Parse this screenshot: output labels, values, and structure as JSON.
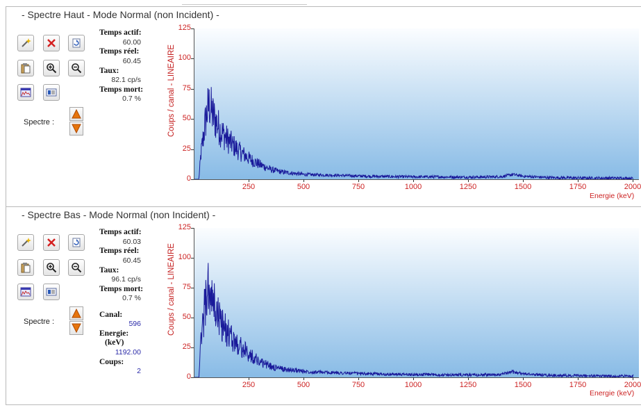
{
  "panels": [
    {
      "title": "- Spectre Haut - Mode Normal (non Incident) -",
      "spectre_label": "Spectre :",
      "stats": {
        "temps_actif_label": "Temps actif:",
        "temps_actif": "60.00",
        "temps_reel_label": "Temps réel:",
        "temps_reel": "60.45",
        "taux_label": "Taux:",
        "taux": "82.1 cp/s",
        "temps_mort_label": "Temps mort:",
        "temps_mort": "0.7 %"
      },
      "cursor": null,
      "chart_data": {
        "type": "line",
        "ylabel": "Coups / canal - LINEAIRE",
        "xlabel": "Energie (keV)",
        "xlim": [
          0,
          2000
        ],
        "ylim": [
          0,
          125
        ],
        "x_ticks": [
          "250",
          "500",
          "750",
          "1000",
          "1250",
          "1500",
          "1750",
          "2000"
        ],
        "y_ticks": [
          "0",
          "25",
          "50",
          "75",
          "100",
          "125"
        ],
        "series": [
          {
            "color": "#1a1a9a",
            "x": [
              20,
              30,
              40,
              50,
              60,
              70,
              80,
              100,
              120,
              150,
              200,
              250,
              300,
              350,
              400,
              450,
              500,
              600,
              700,
              800,
              900,
              1000,
              1100,
              1200,
              1300,
              1400,
              1450,
              1500,
              1600,
              1700,
              1800,
              1900,
              2000
            ],
            "y": [
              0,
              22,
              34,
              48,
              58,
              62,
              55,
              47,
              40,
              33,
              24,
              17,
              12,
              8,
              6,
              5,
              4,
              3.5,
              3,
              2.5,
              2.2,
              2,
              2,
              1.8,
              1.8,
              2.2,
              4,
              2.5,
              1.5,
              1.2,
              1,
              1,
              0.8
            ]
          }
        ]
      }
    },
    {
      "title": "- Spectre Bas - Mode Normal (non Incident) -",
      "spectre_label": "Spectre :",
      "stats": {
        "temps_actif_label": "Temps actif:",
        "temps_actif": "60.03",
        "temps_reel_label": "Temps réel:",
        "temps_reel": "60.45",
        "taux_label": "Taux:",
        "taux": "96.1 cp/s",
        "temps_mort_label": "Temps mort:",
        "temps_mort": "0.7 %"
      },
      "cursor": {
        "canal_label": "Canal:",
        "canal": "596",
        "energie_label": "Energie:",
        "energie_unit_label": "(keV)",
        "energie": "1192.00",
        "coups_label": "Coups:",
        "coups": "2"
      },
      "chart_data": {
        "type": "line",
        "ylabel": "Coups / canal - LINEAIRE",
        "xlabel": "Energie (keV)",
        "xlim": [
          0,
          2000
        ],
        "ylim": [
          0,
          125
        ],
        "x_ticks": [
          "250",
          "500",
          "750",
          "1000",
          "1250",
          "1500",
          "1750",
          "2000"
        ],
        "y_ticks": [
          "0",
          "25",
          "50",
          "75",
          "100",
          "125"
        ],
        "series": [
          {
            "color": "#1a1a9a",
            "x": [
              20,
              30,
              40,
              50,
              60,
              70,
              80,
              100,
              120,
              150,
              200,
              250,
              300,
              350,
              400,
              450,
              500,
              600,
              700,
              800,
              900,
              1000,
              1100,
              1200,
              1300,
              1400,
              1450,
              1500,
              1600,
              1700,
              1800,
              1900,
              2000
            ],
            "y": [
              0,
              30,
              48,
              62,
              72,
              70,
              63,
              55,
              46,
              37,
              27,
              19,
              13,
              9,
              7,
              6,
              5,
              4,
              3.5,
              3,
              2.5,
              2.3,
              2.2,
              2,
              2,
              2.5,
              4.5,
              3,
              1.8,
              1.4,
              1.2,
              1.1,
              1
            ]
          }
        ]
      }
    }
  ]
}
